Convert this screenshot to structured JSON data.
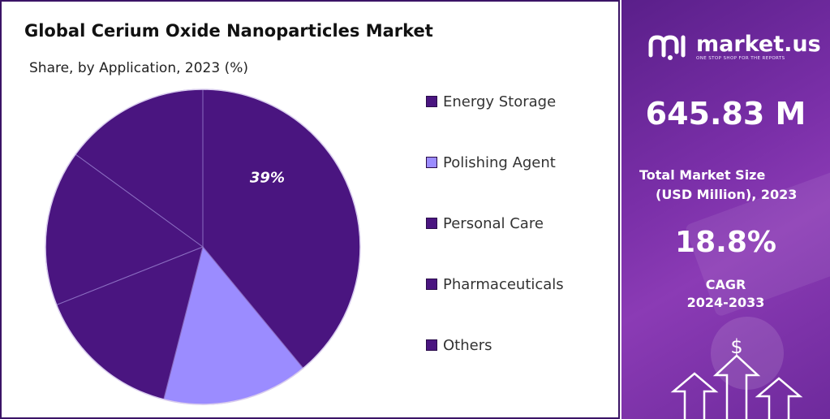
{
  "chart_data": {
    "type": "pie",
    "title": "Global Cerium Oxide Nanoparticles Market",
    "subtitle": "Share, by Application, 2023 (%)",
    "categories": [
      "Energy Storage",
      "Polishing Agent",
      "Personal Care",
      "Pharmaceuticals",
      "Others"
    ],
    "values": [
      39,
      15,
      15,
      16,
      15
    ],
    "data_labels": [
      "39%",
      "",
      "",
      "",
      ""
    ],
    "colors": [
      "#4a1580",
      "#9b8cff",
      "#4a1580",
      "#4a1580",
      "#4a1580"
    ],
    "legend_position": "right"
  },
  "sidebar": {
    "brand_name": "market.us",
    "brand_tagline": "ONE STOP SHOP FOR THE REPORTS",
    "market_size_value": "645.83 M",
    "market_size_label_line1": "Total Market Size",
    "market_size_label_line2": "(USD Million), 2023",
    "cagr_value": "18.8%",
    "cagr_label_line1": "CAGR",
    "cagr_label_line2": "2024-2033",
    "dollar_symbol": "$",
    "gradient_colors": [
      "#5a1f8a",
      "#8b3bb5"
    ]
  }
}
